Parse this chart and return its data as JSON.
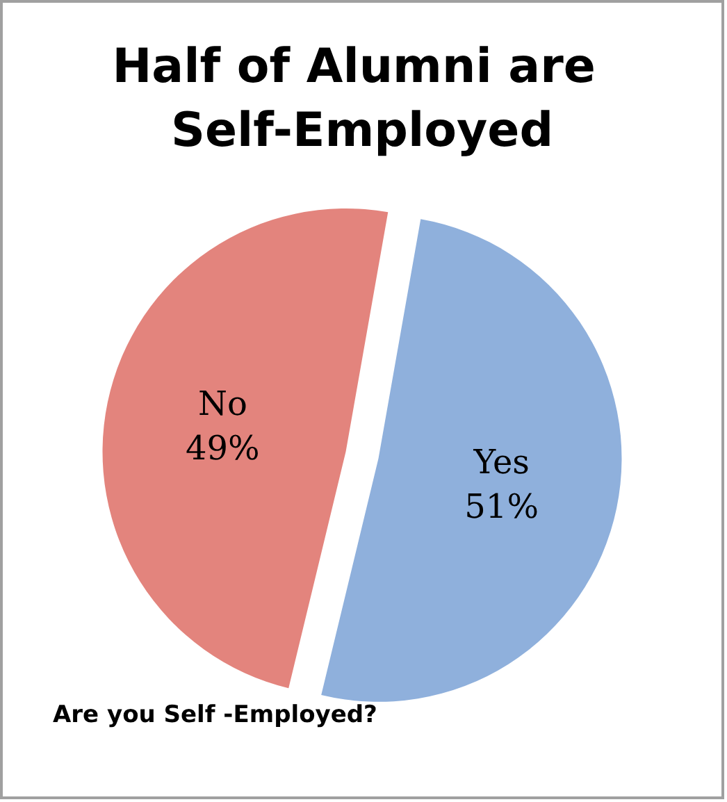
{
  "chart_data": {
    "type": "pie",
    "title": "Half of Alumni are Self-Employed",
    "categories": [
      "Yes",
      "No"
    ],
    "values": [
      51,
      49
    ],
    "colors": [
      "#8fb0dc",
      "#e3847d"
    ],
    "value_labels": [
      "51%",
      "49%"
    ],
    "legend": false,
    "annotations": [
      "Are you Self -Employed?"
    ]
  }
}
